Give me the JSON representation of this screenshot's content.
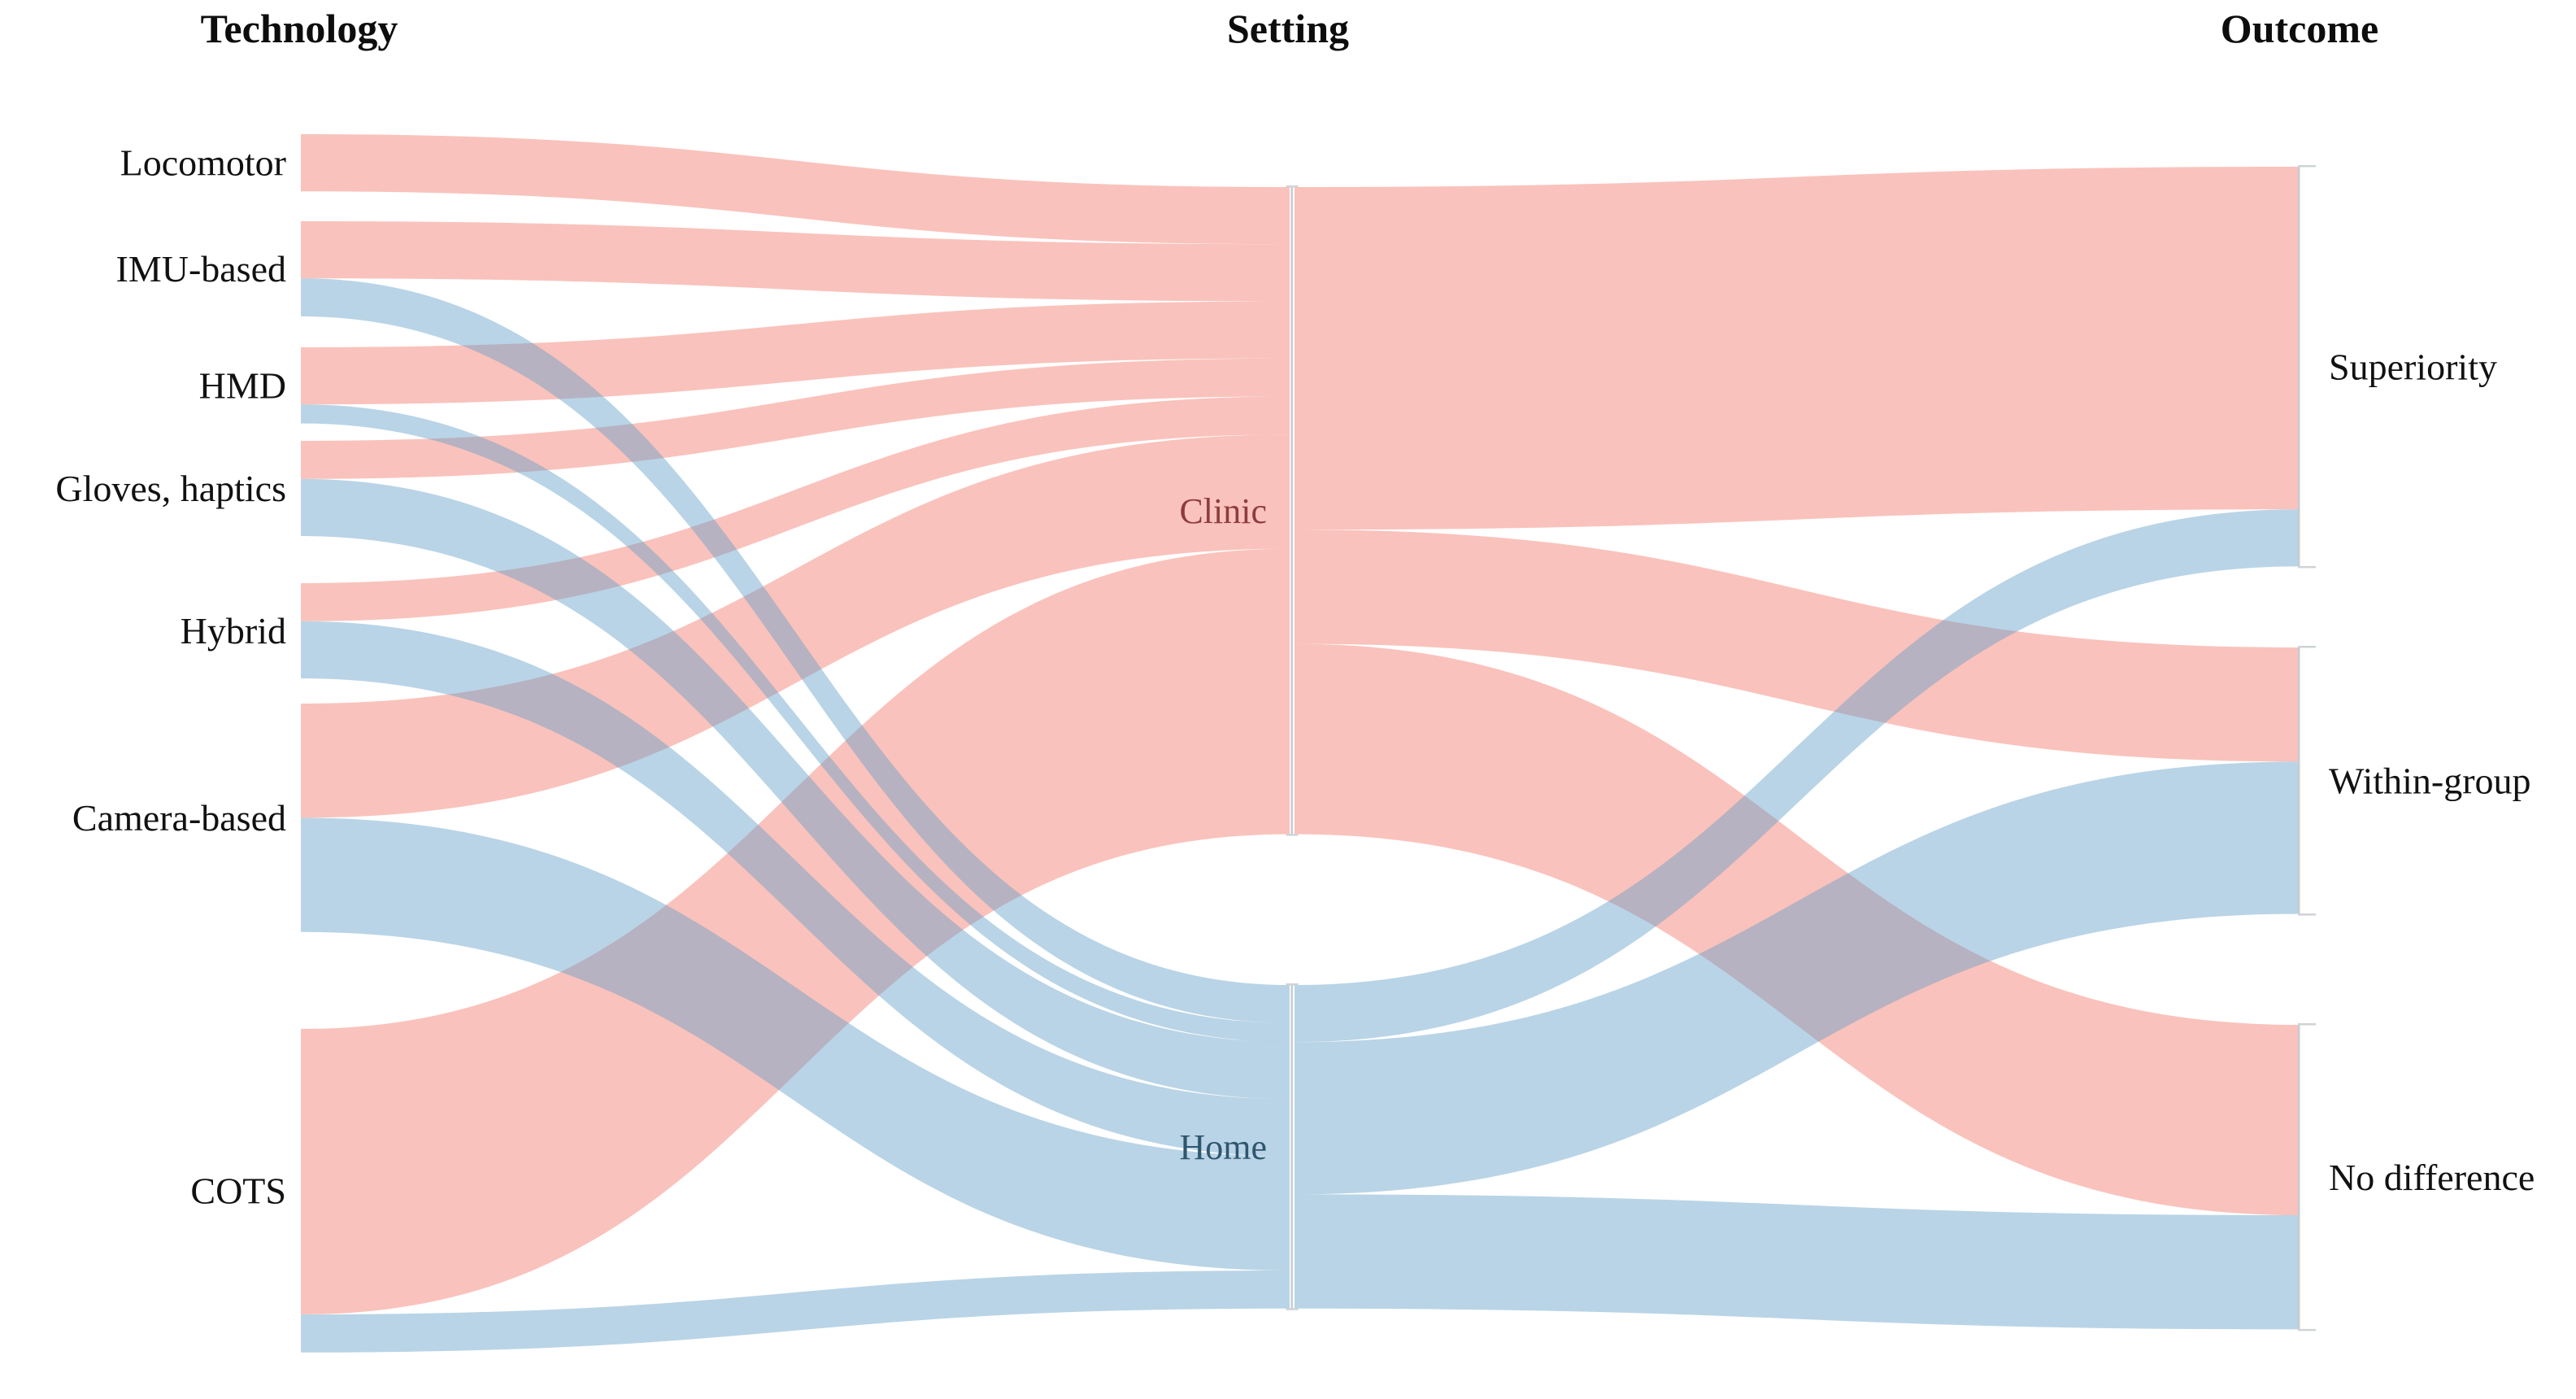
{
  "figure": {
    "column_titles": [
      {
        "id": "technology",
        "label": "Technology"
      },
      {
        "id": "setting",
        "label": "Setting"
      },
      {
        "id": "outcome",
        "label": "Outcome"
      }
    ]
  },
  "colors": {
    "clinic_flow": "#F5786B",
    "home_flow": "#64A0C8",
    "flow_opacity": 0.45,
    "clinic_label": "#8D3C3C",
    "home_label": "#2E566E",
    "node_bar": "#C6CCD1",
    "tick": "#CFD3D6",
    "text": "#111111"
  },
  "chart_data": {
    "type": "sankey",
    "title": "",
    "columns": [
      "Technology",
      "Setting",
      "Outcome"
    ],
    "legend_position": "none",
    "grid": false,
    "nodes": [
      {
        "id": "Locomotor",
        "column": "Technology",
        "total": 3
      },
      {
        "id": "IMU-based",
        "column": "Technology",
        "total": 5
      },
      {
        "id": "HMD",
        "column": "Technology",
        "total": 4
      },
      {
        "id": "Gloves, haptics",
        "column": "Technology",
        "total": 5
      },
      {
        "id": "Hybrid",
        "column": "Technology",
        "total": 5
      },
      {
        "id": "Camera-based",
        "column": "Technology",
        "total": 12
      },
      {
        "id": "COTS",
        "column": "Technology",
        "total": 17
      },
      {
        "id": "Clinic",
        "column": "Setting",
        "total": 34
      },
      {
        "id": "Home",
        "column": "Setting",
        "total": 17
      },
      {
        "id": "Superiority",
        "column": "Outcome",
        "total": 21
      },
      {
        "id": "Within-group",
        "column": "Outcome",
        "total": 14
      },
      {
        "id": "No difference",
        "column": "Outcome",
        "total": 16
      }
    ],
    "links": [
      {
        "source": "Locomotor",
        "target": "Clinic",
        "value": 3,
        "group": "clinic"
      },
      {
        "source": "IMU-based",
        "target": "Clinic",
        "value": 3,
        "group": "clinic"
      },
      {
        "source": "HMD",
        "target": "Clinic",
        "value": 3,
        "group": "clinic"
      },
      {
        "source": "Gloves, haptics",
        "target": "Clinic",
        "value": 2,
        "group": "clinic"
      },
      {
        "source": "Hybrid",
        "target": "Clinic",
        "value": 2,
        "group": "clinic"
      },
      {
        "source": "Camera-based",
        "target": "Clinic",
        "value": 6,
        "group": "clinic"
      },
      {
        "source": "COTS",
        "target": "Clinic",
        "value": 15,
        "group": "clinic"
      },
      {
        "source": "IMU-based",
        "target": "Home",
        "value": 2,
        "group": "home"
      },
      {
        "source": "HMD",
        "target": "Home",
        "value": 1,
        "group": "home"
      },
      {
        "source": "Gloves, haptics",
        "target": "Home",
        "value": 3,
        "group": "home"
      },
      {
        "source": "Hybrid",
        "target": "Home",
        "value": 3,
        "group": "home"
      },
      {
        "source": "Camera-based",
        "target": "Home",
        "value": 6,
        "group": "home"
      },
      {
        "source": "COTS",
        "target": "Home",
        "value": 2,
        "group": "home"
      },
      {
        "source": "Clinic",
        "target": "Superiority",
        "value": 18,
        "group": "clinic"
      },
      {
        "source": "Clinic",
        "target": "Within-group",
        "value": 6,
        "group": "clinic"
      },
      {
        "source": "Clinic",
        "target": "No difference",
        "value": 10,
        "group": "clinic"
      },
      {
        "source": "Home",
        "target": "Superiority",
        "value": 3,
        "group": "home"
      },
      {
        "source": "Home",
        "target": "Within-group",
        "value": 8,
        "group": "home"
      },
      {
        "source": "Home",
        "target": "No difference",
        "value": 6,
        "group": "home"
      }
    ]
  }
}
